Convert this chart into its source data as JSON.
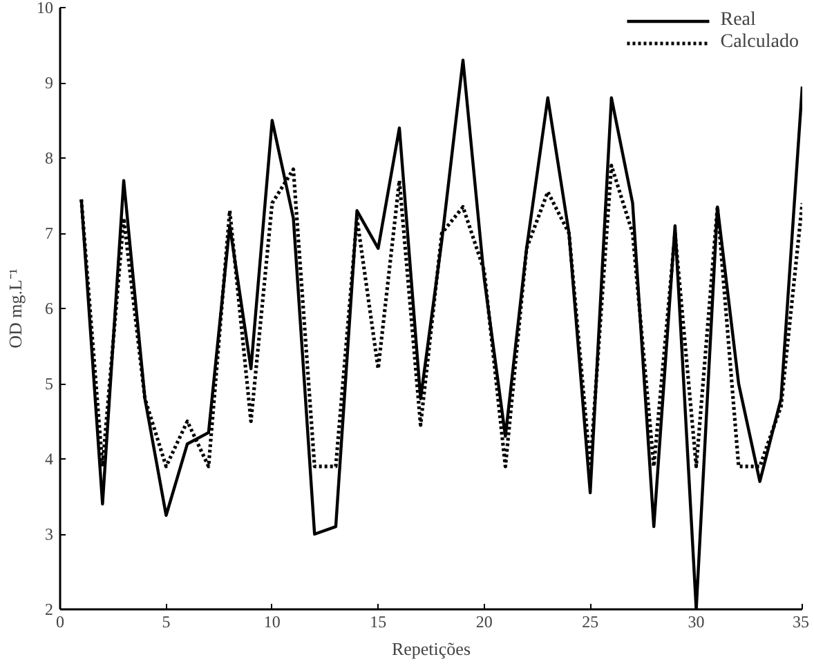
{
  "chart_data": {
    "type": "line",
    "xlabel": "Repetições",
    "ylabel": "OD mg.L⁻¹",
    "x": [
      1,
      2,
      3,
      4,
      5,
      6,
      7,
      8,
      9,
      10,
      11,
      12,
      13,
      14,
      15,
      16,
      17,
      18,
      19,
      20,
      21,
      22,
      23,
      24,
      25,
      26,
      27,
      28,
      29,
      30,
      31,
      32,
      33,
      34,
      35
    ],
    "series": [
      {
        "name": "Real",
        "color": "#000000",
        "line_style": "solid",
        "values": [
          7.45,
          3.4,
          7.7,
          4.8,
          3.25,
          4.2,
          4.35,
          7.1,
          5.2,
          8.5,
          7.2,
          3.0,
          3.1,
          7.3,
          6.8,
          8.4,
          4.8,
          6.9,
          9.3,
          6.4,
          4.3,
          6.8,
          8.8,
          7.0,
          3.55,
          8.8,
          7.4,
          3.1,
          7.1,
          2.0,
          7.35,
          5.0,
          3.7,
          4.8,
          8.95
        ]
      },
      {
        "name": "Calculado",
        "color": "#000000",
        "line_style": "dotted",
        "values": [
          7.45,
          3.9,
          7.2,
          4.8,
          3.9,
          4.5,
          3.9,
          7.3,
          4.5,
          7.4,
          7.85,
          3.9,
          3.9,
          7.2,
          5.2,
          7.7,
          4.45,
          7.0,
          7.35,
          6.5,
          3.9,
          6.8,
          7.55,
          7.0,
          3.9,
          7.9,
          7.0,
          3.9,
          7.0,
          3.9,
          7.35,
          3.9,
          3.9,
          4.7,
          7.4
        ]
      }
    ],
    "xlim": [
      0,
      35
    ],
    "ylim": [
      2,
      10
    ],
    "xticks": [
      0,
      5,
      10,
      15,
      20,
      25,
      30,
      35
    ],
    "yticks": [
      2,
      3,
      4,
      5,
      6,
      7,
      8,
      9,
      10
    ],
    "grid": false,
    "legend": "top right",
    "marker": "none"
  }
}
